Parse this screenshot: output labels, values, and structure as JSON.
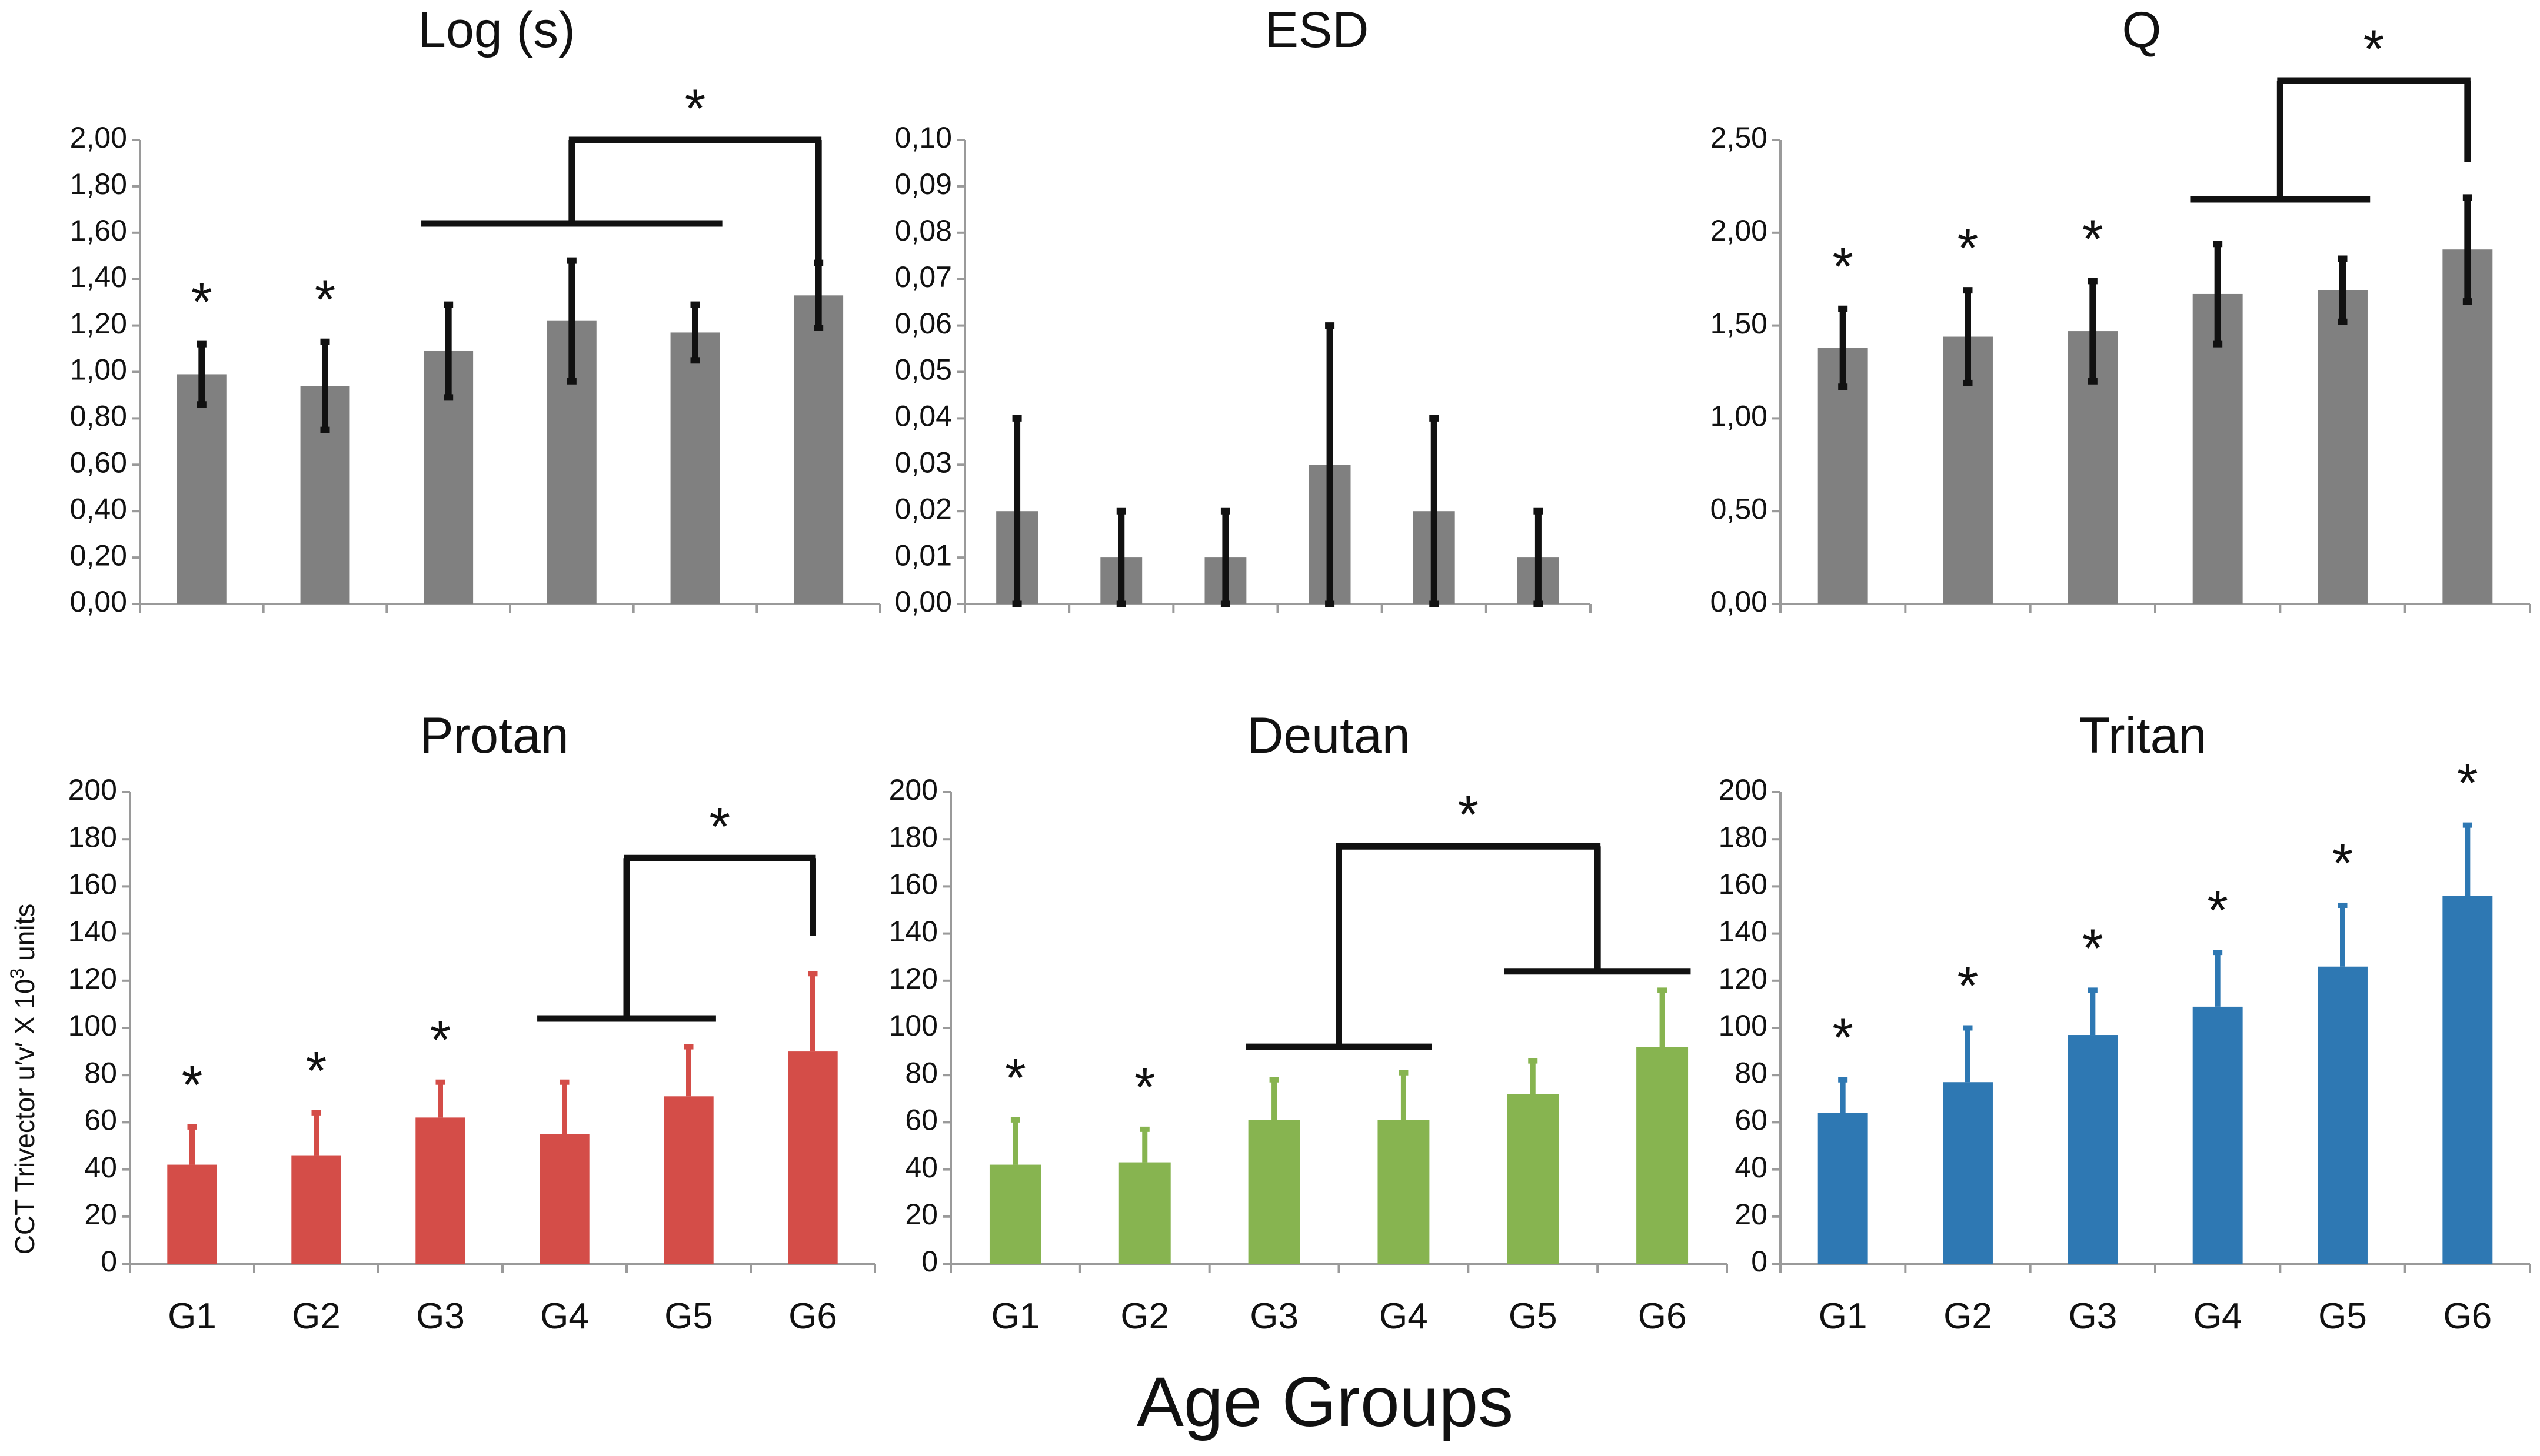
{
  "figure": {
    "xlabel": "Age Groups",
    "ylabel_main": "CCT Trivector u′v′ X 10",
    "ylabel_sup": "3",
    "ylabel_tail": " units",
    "colors": {
      "gray": "#808080",
      "red": "#d44d48",
      "green": "#87b450",
      "blue": "#2e78b3",
      "ink": "#111111"
    }
  },
  "chart_data": [
    {
      "type": "bar",
      "title": "Log (s)",
      "categories": [
        "G1",
        "G2",
        "G3",
        "G4",
        "G5",
        "G6"
      ],
      "values": [
        0.99,
        0.94,
        1.09,
        1.22,
        1.17,
        1.33
      ],
      "errors": [
        0.13,
        0.19,
        0.2,
        0.26,
        0.12,
        0.14
      ],
      "error_style": "both",
      "ylim": [
        0,
        2.0
      ],
      "yticks": [
        "0,00",
        "0,20",
        "0,40",
        "0,60",
        "0,80",
        "1,00",
        "1,20",
        "1,40",
        "1,60",
        "1,80",
        "2,00"
      ],
      "color": "#808080",
      "show_xticklabels": false,
      "significant": [
        "G1",
        "G2"
      ],
      "bracket": {
        "left_groups": [
          "G3",
          "G4",
          "G5"
        ],
        "right_group": "G6",
        "left_level": 1.64,
        "top_level": 2.0,
        "right_end": 1.46,
        "label": "*"
      }
    },
    {
      "type": "bar",
      "title": "ESD",
      "categories": [
        "G1",
        "G2",
        "G3",
        "G4",
        "G5",
        "G6"
      ],
      "values": [
        0.02,
        0.01,
        0.01,
        0.03,
        0.02,
        0.01
      ],
      "errors": [
        0.02,
        0.01,
        0.01,
        0.03,
        0.02,
        0.01
      ],
      "error_style": "both",
      "ylim": [
        0,
        0.1
      ],
      "yticks": [
        "0,00",
        "0,01",
        "0,02",
        "0,03",
        "0,04",
        "0,05",
        "0,06",
        "0,07",
        "0,08",
        "0,09",
        "0,10"
      ],
      "color": "#808080",
      "show_xticklabels": false,
      "significant": []
    },
    {
      "type": "bar",
      "title": "Q",
      "categories": [
        "G1",
        "G2",
        "G3",
        "G4",
        "G5",
        "G6"
      ],
      "values": [
        1.38,
        1.44,
        1.47,
        1.67,
        1.69,
        1.91
      ],
      "errors": [
        0.21,
        0.25,
        0.27,
        0.27,
        0.17,
        0.28
      ],
      "error_style": "both",
      "ylim": [
        0,
        2.5
      ],
      "yticks": [
        "0,00",
        "0,50",
        "1,00",
        "1,50",
        "2,00",
        "2,50"
      ],
      "color": "#808080",
      "show_xticklabels": false,
      "significant": [
        "G1",
        "G2",
        "G3"
      ],
      "bracket": {
        "left_groups": [
          "G4",
          "G5"
        ],
        "right_group": "G6",
        "left_level": 2.18,
        "top_level": 2.82,
        "right_end": 2.38,
        "label": "*"
      }
    },
    {
      "type": "bar",
      "title": "Protan",
      "categories": [
        "G1",
        "G2",
        "G3",
        "G4",
        "G5",
        "G6"
      ],
      "values": [
        42,
        46,
        62,
        55,
        71,
        90
      ],
      "errors": [
        16,
        18,
        15,
        22,
        21,
        33
      ],
      "error_style": "up",
      "ylim": [
        0,
        200
      ],
      "yticks": [
        "0",
        "20",
        "40",
        "60",
        "80",
        "100",
        "120",
        "140",
        "160",
        "180",
        "200"
      ],
      "color": "#d44d48",
      "show_xticklabels": true,
      "significant": [
        "G1",
        "G2",
        "G3"
      ],
      "bracket": {
        "left_groups": [
          "G4",
          "G5"
        ],
        "right_group": "G6",
        "left_level": 104,
        "top_level": 172,
        "right_end": 139,
        "label": "*"
      }
    },
    {
      "type": "bar",
      "title": "Deutan",
      "categories": [
        "G1",
        "G2",
        "G3",
        "G4",
        "G5",
        "G6"
      ],
      "values": [
        42,
        43,
        61,
        61,
        72,
        92
      ],
      "errors": [
        19,
        14,
        17,
        20,
        14,
        24
      ],
      "error_style": "up",
      "ylim": [
        0,
        200
      ],
      "yticks": [
        "0",
        "20",
        "40",
        "60",
        "80",
        "100",
        "120",
        "140",
        "160",
        "180",
        "200"
      ],
      "color": "#87b450",
      "show_xticklabels": true,
      "significant": [
        "G1",
        "G2"
      ],
      "bracket": {
        "left_groups": [
          "G3",
          "G4"
        ],
        "right_groups": [
          "G5",
          "G6"
        ],
        "left_level": 92,
        "top_level": 177,
        "right_level": 124,
        "label": "*"
      }
    },
    {
      "type": "bar",
      "title": "Tritan",
      "categories": [
        "G1",
        "G2",
        "G3",
        "G4",
        "G5",
        "G6"
      ],
      "values": [
        64,
        77,
        97,
        109,
        126,
        156
      ],
      "errors": [
        14,
        23,
        19,
        23,
        26,
        30
      ],
      "error_style": "up",
      "ylim": [
        0,
        200
      ],
      "yticks": [
        "0",
        "20",
        "40",
        "60",
        "80",
        "100",
        "120",
        "140",
        "160",
        "180",
        "200"
      ],
      "color": "#2e78b3",
      "show_xticklabels": true,
      "significant": [
        "G1",
        "G2",
        "G3",
        "G4",
        "G5",
        "G6"
      ]
    }
  ]
}
